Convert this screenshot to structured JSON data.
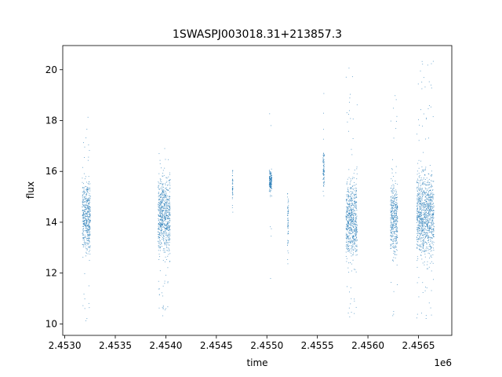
{
  "chart_data": {
    "type": "scatter",
    "title": "1SWASPJ003018.31+213857.3",
    "xlabel": "time",
    "ylabel": "flux",
    "x_offset_label": "1e6",
    "xlim": [
      2452980,
      2456830
    ],
    "ylim": [
      9.55,
      20.95
    ],
    "x_ticks": [
      2453000,
      2453500,
      2454000,
      2454500,
      2455000,
      2455500,
      2456000,
      2456500
    ],
    "x_tick_labels": [
      "2.4530",
      "2.4535",
      "2.4540",
      "2.4545",
      "2.4550",
      "2.4555",
      "2.4560",
      "2.4565"
    ],
    "y_ticks": [
      10,
      12,
      14,
      16,
      18,
      20
    ],
    "y_tick_labels": [
      "10",
      "12",
      "14",
      "16",
      "18",
      "20"
    ],
    "grid": false,
    "series_color": "#1f77b4",
    "clusters": [
      {
        "x_range": [
          2453170,
          2453250
        ],
        "core": [
          12.2,
          16.2
        ],
        "tail": [
          10.0,
          18.4
        ]
      },
      {
        "x_range": [
          2453920,
          2454040
        ],
        "core": [
          12.2,
          16.4
        ],
        "tail": [
          10.3,
          17.0
        ]
      },
      {
        "x_range": [
          2454655,
          2454660
        ],
        "core": [
          14.3,
          16.4
        ],
        "tail": [
          14.1,
          16.5
        ]
      },
      {
        "x_range": [
          2455020,
          2455045
        ],
        "core": [
          15.0,
          16.2
        ],
        "tail": [
          11.4,
          18.5
        ]
      },
      {
        "x_range": [
          2455200,
          2455210
        ],
        "core": [
          12.2,
          15.9
        ],
        "tail": [
          12.1,
          16.1
        ]
      },
      {
        "x_range": [
          2455552,
          2455565
        ],
        "core": [
          15.2,
          17.1
        ],
        "tail": [
          14.2,
          20.1
        ]
      },
      {
        "x_range": [
          2455780,
          2455890
        ],
        "core": [
          11.8,
          16.4
        ],
        "tail": [
          10.1,
          20.4
        ]
      },
      {
        "x_range": [
          2456220,
          2456290
        ],
        "core": [
          12.0,
          16.3
        ],
        "tail": [
          10.1,
          20.2
        ]
      },
      {
        "x_range": [
          2456480,
          2456650
        ],
        "core": [
          12.0,
          16.6
        ],
        "tail": [
          10.2,
          20.4
        ]
      }
    ]
  }
}
